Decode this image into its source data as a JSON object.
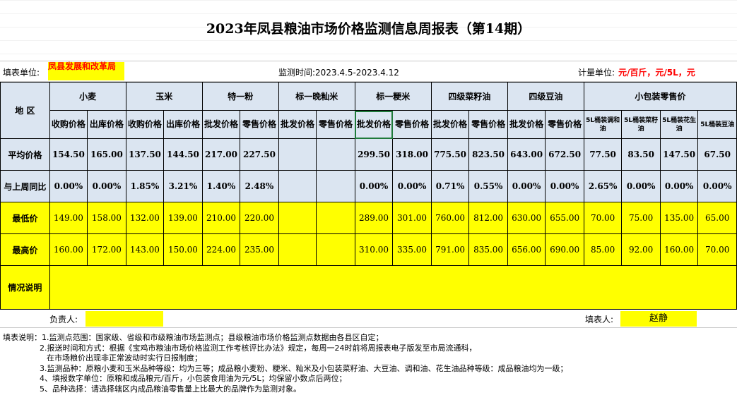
{
  "title": "2023年凤县粮油市场价格监测信息周报表（第14期）",
  "info": {
    "unit_label": "填表单位:",
    "unit_value": "凤县发展和改革局",
    "monitor_time": "监测时间:2023.4.5-2023.4.12",
    "measure_label": "计量单位:",
    "measure_value": "元/百斤，元/5L，元"
  },
  "headers": {
    "region": "地 区",
    "groups": [
      "小麦",
      "玉米",
      "特一粉",
      "标一晚籼米",
      "标一粳米",
      "四级菜籽油",
      "四级豆油",
      "小包装零售价"
    ],
    "sub": [
      "收购价格",
      "出库价格",
      "收购价格",
      "出库价格",
      "批发价格",
      "零售价格",
      "批发价格",
      "零售价格",
      "批发价格",
      "零售价格",
      "批发价格",
      "零售价格",
      "批发价格",
      "零售价格",
      "5L桶装调和油",
      "5L桶装菜籽油",
      "5L桶装花生油",
      "5L桶装豆油"
    ]
  },
  "rows": {
    "avg": {
      "label": "平均价格",
      "values": [
        "154.50",
        "165.00",
        "137.50",
        "144.50",
        "217.00",
        "227.50",
        "",
        "",
        "299.50",
        "318.00",
        "775.50",
        "823.50",
        "643.00",
        "672.50",
        "77.50",
        "83.50",
        "147.50",
        "67.50"
      ]
    },
    "wow": {
      "label": "与上周同比",
      "values": [
        "0.00%",
        "0.00%",
        "1.85%",
        "3.21%",
        "1.40%",
        "2.48%",
        "",
        "",
        "0.00%",
        "0.00%",
        "0.71%",
        "0.55%",
        "0.00%",
        "0.00%",
        "2.65%",
        "0.00%",
        "0.00%",
        "0.00%"
      ]
    },
    "min": {
      "label": "最低价",
      "values": [
        "149.00",
        "158.00",
        "132.00",
        "139.00",
        "210.00",
        "220.00",
        "",
        "",
        "289.00",
        "301.00",
        "760.00",
        "812.00",
        "630.00",
        "655.00",
        "70.00",
        "75.00",
        "135.00",
        "65.00"
      ]
    },
    "max": {
      "label": "最高价",
      "values": [
        "160.00",
        "172.00",
        "143.00",
        "150.00",
        "224.00",
        "235.00",
        "",
        "",
        "310.00",
        "335.00",
        "791.00",
        "835.00",
        "656.00",
        "690.00",
        "85.00",
        "92.00",
        "160.00",
        "70.00"
      ]
    },
    "note": {
      "label": "情况说明"
    }
  },
  "footer": {
    "responsible_label": "负责人:",
    "filler_label": "填表人:",
    "filler_value": "赵静"
  },
  "notes": [
    "填表说明：1.监测点范围：国家级、省级和市级粮油市场监测点；县级粮油市场价格监测点数据由各县区自定；",
    "2.报送时间和方式：根据《宝鸡市粮油市场价格监测工作考核评比办法》规定，每周一24时前将周报表电子版发至市局流通科，",
    "在市场粮价出现非正常波动时实行日报制度；",
    "3.监测品种：原粮小麦和玉米品种等级：均为三等；成品粮小麦粉、粳米、籼米及小包装菜籽油、大豆油、调和油、花生油品种等级：成品粮油均为一级；",
    "4、填报数字单位：原粮和成品粮元/百斤，小包装食用油为元/5L；均保留小数点后两位；",
    "5、品种选择：请选择辖区内成品粮油零售量上比最大的品牌作为监测对象。"
  ]
}
